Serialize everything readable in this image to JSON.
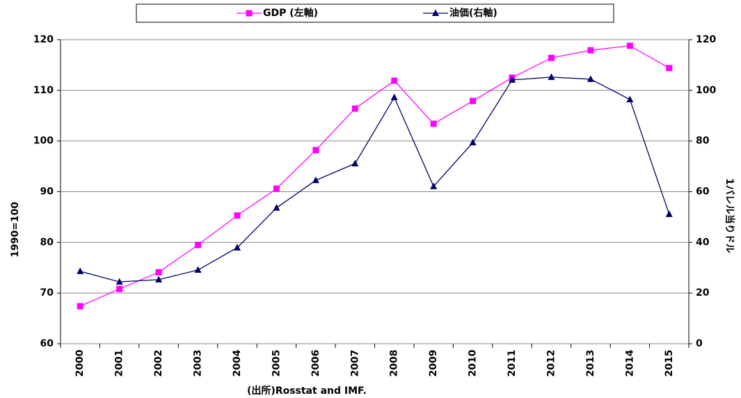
{
  "chart_data": {
    "type": "line",
    "categories": [
      "2000",
      "2001",
      "2002",
      "2003",
      "2004",
      "2005",
      "2006",
      "2007",
      "2008",
      "2009",
      "2010",
      "2011",
      "2012",
      "2013",
      "2014",
      "2015"
    ],
    "series": [
      {
        "name": "GDP (左軸)",
        "color": "#ff00ff",
        "marker": "square",
        "values": [
          67.4,
          70.8,
          74.1,
          79.5,
          85.3,
          90.6,
          98.2,
          106.4,
          111.9,
          103.4,
          107.9,
          112.5,
          116.4,
          117.9,
          118.8,
          114.4
        ]
      },
      {
        "name": "油価(右軸)",
        "color": "#000066",
        "marker": "triangle",
        "axis": "y2",
        "values": [
          28.6,
          24.4,
          25.3,
          29.1,
          37.9,
          53.6,
          64.5,
          71.1,
          97.2,
          62.1,
          79.4,
          104.1,
          105.2,
          104.4,
          96.4,
          51.1
        ]
      }
    ],
    "ylim": [
      60,
      120
    ],
    "yticks": [
      60,
      70,
      80,
      90,
      100,
      110,
      120
    ],
    "y2lim": [
      0,
      120
    ],
    "y2ticks": [
      0,
      20,
      40,
      60,
      80,
      100,
      120
    ],
    "ylabel": "1990=100",
    "y2label": "1バレル当りドル",
    "source": "(出所)Rosstat and IMF.",
    "grid": true,
    "legend": "top"
  }
}
